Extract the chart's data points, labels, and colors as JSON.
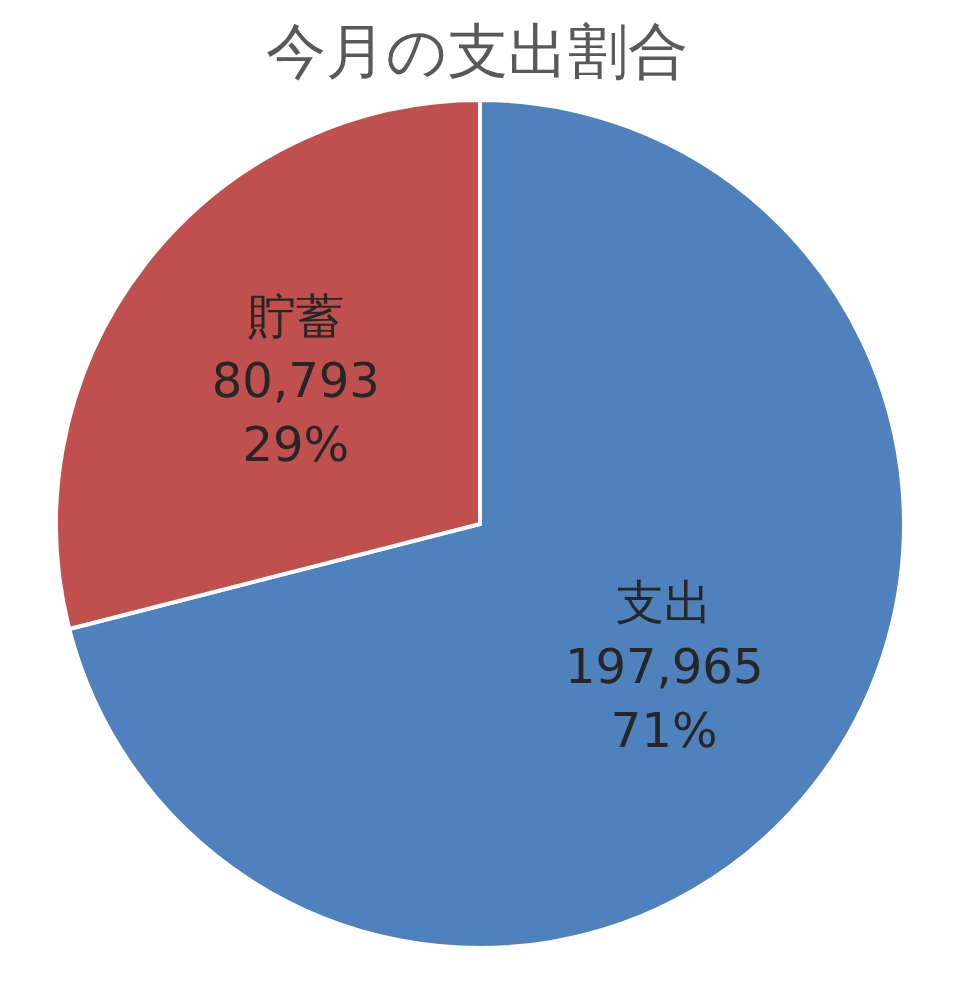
{
  "chart_data": {
    "type": "pie",
    "title": "今月の支出割合",
    "categories": [
      "支出",
      "貯蓄"
    ],
    "values": [
      197965,
      80793
    ],
    "value_labels": [
      "197,965\n71%",
      "80,793\n29%"
    ],
    "colors": [
      "#4f81bd",
      "#c0504d"
    ]
  }
}
